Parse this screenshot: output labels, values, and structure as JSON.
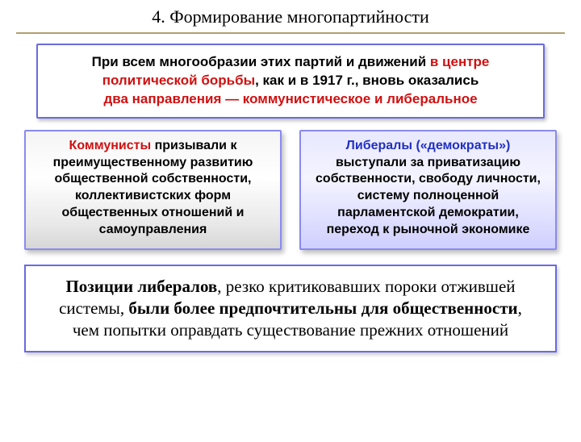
{
  "colors": {
    "hr": "#b0a070",
    "border": "#6a6ae0",
    "red": "#d01010",
    "blue": "#2030c0",
    "black": "#000000"
  },
  "title": "4. Формирование многопартийности",
  "intro": {
    "part1": "При всем многообразии этих партий и движений ",
    "red1": "в центре политической борьбы",
    "part2": ", как и в 1917 г., вновь оказались ",
    "red2": "два направления — коммунистическое и либеральное"
  },
  "left": {
    "head": "Коммунисты",
    "body": " призывали к преимущественному развитию общественной собственности, коллективистских форм общественных отношений и самоуправления"
  },
  "right": {
    "head": "Либералы («демократы»)",
    "body": " выступали за приватизацию собственности, свободу личности, систему полноценной парламентской демократии, переход к рыночной экономике"
  },
  "conclusion": {
    "b1": "Позиции либералов",
    "p1": ", резко критиковавших пороки отжившей системы, ",
    "b2": "были более предпочтительны для общественности",
    "p2": ", чем попытки оправдать существование прежних отношений"
  }
}
